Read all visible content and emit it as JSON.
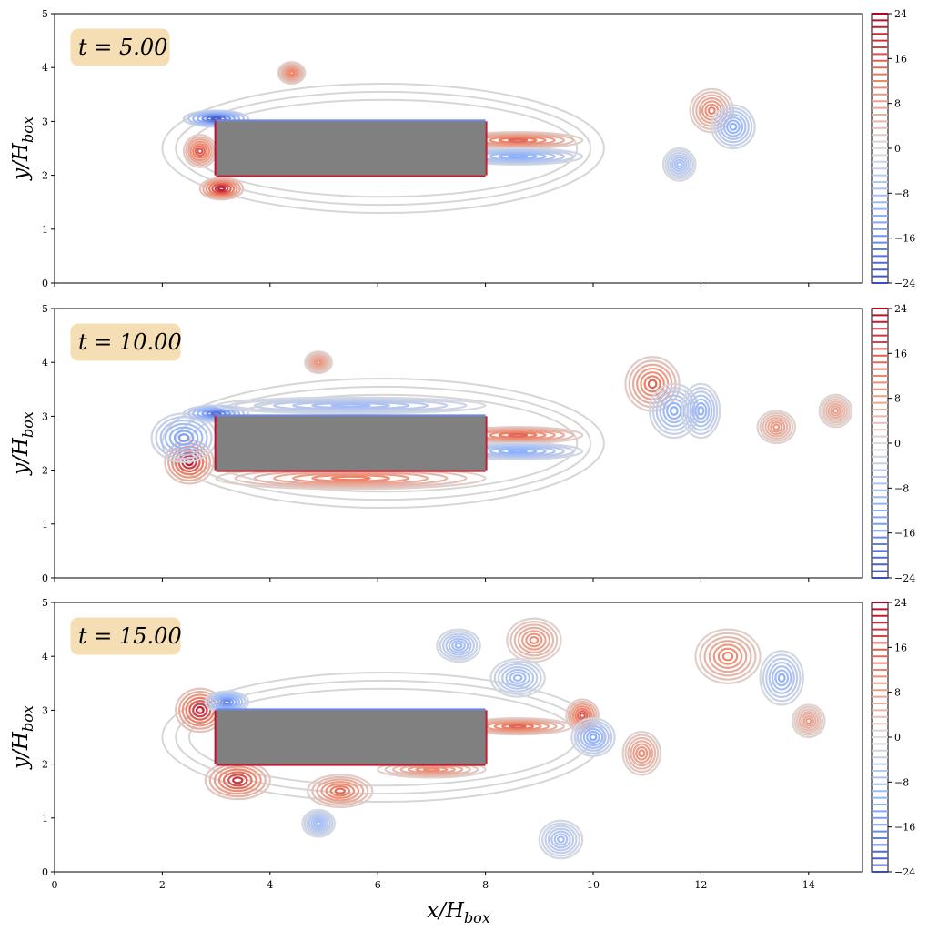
{
  "chart_data": [
    {
      "type": "contour",
      "annotation": "t = 5.00",
      "ylabel": "y/H",
      "ylabel_sub": "box",
      "xlim": [
        0,
        15
      ],
      "ylim": [
        0,
        5
      ],
      "y_ticks": [
        "0",
        "1",
        "2",
        "3",
        "4",
        "5"
      ],
      "x_ticks_labeled": false,
      "obstacle": {
        "x": [
          3,
          8
        ],
        "y": [
          2,
          3
        ],
        "color": "#808080"
      },
      "colorbar": {
        "ticks": [
          "24",
          "16",
          "8",
          "0",
          "−8",
          "−16",
          "−24"
        ],
        "range": [
          -24,
          24
        ],
        "colormap": "coolwarm"
      },
      "vortices": [
        {
          "x": 3.0,
          "y": 3.05,
          "sign": -1,
          "strength": 0.9,
          "rx": 0.6,
          "ry": 0.15
        },
        {
          "x": 2.7,
          "y": 2.45,
          "sign": 1,
          "strength": 0.7,
          "rx": 0.3,
          "ry": 0.3
        },
        {
          "x": 3.1,
          "y": 1.75,
          "sign": 1,
          "strength": 0.9,
          "rx": 0.4,
          "ry": 0.2
        },
        {
          "x": 4.4,
          "y": 3.9,
          "sign": 1,
          "strength": 0.5,
          "rx": 0.25,
          "ry": 0.2
        },
        {
          "x": 8.6,
          "y": 2.65,
          "sign": 1,
          "strength": 0.6,
          "rx": 1.2,
          "ry": 0.15
        },
        {
          "x": 8.6,
          "y": 2.35,
          "sign": -1,
          "strength": 0.5,
          "rx": 1.2,
          "ry": 0.15
        },
        {
          "x": 12.2,
          "y": 3.2,
          "sign": 1,
          "strength": 0.5,
          "rx": 0.4,
          "ry": 0.4
        },
        {
          "x": 12.6,
          "y": 2.9,
          "sign": -1,
          "strength": 0.5,
          "rx": 0.4,
          "ry": 0.4
        },
        {
          "x": 11.6,
          "y": 2.2,
          "sign": -1,
          "strength": 0.35,
          "rx": 0.3,
          "ry": 0.3
        }
      ]
    },
    {
      "type": "contour",
      "annotation": "t = 10.00",
      "ylabel": "y/H",
      "ylabel_sub": "box",
      "xlim": [
        0,
        15
      ],
      "ylim": [
        0,
        5
      ],
      "y_ticks": [
        "0",
        "1",
        "2",
        "3",
        "4",
        "5"
      ],
      "x_ticks_labeled": false,
      "obstacle": {
        "x": [
          3,
          8
        ],
        "y": [
          2,
          3
        ],
        "color": "#808080"
      },
      "colorbar": {
        "ticks": [
          "24",
          "16",
          "8",
          "0",
          "−8",
          "−16",
          "−24"
        ],
        "range": [
          -24,
          24
        ],
        "colormap": "coolwarm"
      },
      "vortices": [
        {
          "x": 2.5,
          "y": 2.15,
          "sign": 1,
          "strength": 0.9,
          "rx": 0.45,
          "ry": 0.4
        },
        {
          "x": 2.4,
          "y": 2.6,
          "sign": -1,
          "strength": 0.6,
          "rx": 0.6,
          "ry": 0.45
        },
        {
          "x": 3.0,
          "y": 3.05,
          "sign": -1,
          "strength": 0.8,
          "rx": 0.6,
          "ry": 0.15
        },
        {
          "x": 5.5,
          "y": 1.85,
          "sign": 1,
          "strength": 0.5,
          "rx": 2.5,
          "ry": 0.2
        },
        {
          "x": 5.5,
          "y": 3.2,
          "sign": -1,
          "strength": 0.35,
          "rx": 2.5,
          "ry": 0.15
        },
        {
          "x": 8.6,
          "y": 2.65,
          "sign": 1,
          "strength": 0.6,
          "rx": 1.2,
          "ry": 0.15
        },
        {
          "x": 8.6,
          "y": 2.35,
          "sign": -1,
          "strength": 0.5,
          "rx": 1.2,
          "ry": 0.15
        },
        {
          "x": 11.1,
          "y": 3.6,
          "sign": 1,
          "strength": 0.6,
          "rx": 0.5,
          "ry": 0.5
        },
        {
          "x": 11.5,
          "y": 3.1,
          "sign": -1,
          "strength": 0.5,
          "rx": 0.45,
          "ry": 0.5
        },
        {
          "x": 12.0,
          "y": 3.1,
          "sign": -1,
          "strength": 0.45,
          "rx": 0.35,
          "ry": 0.5
        },
        {
          "x": 13.4,
          "y": 2.8,
          "sign": 1,
          "strength": 0.4,
          "rx": 0.35,
          "ry": 0.3
        },
        {
          "x": 14.5,
          "y": 3.1,
          "sign": 1,
          "strength": 0.35,
          "rx": 0.3,
          "ry": 0.3
        },
        {
          "x": 4.9,
          "y": 4.0,
          "sign": 1,
          "strength": 0.4,
          "rx": 0.25,
          "ry": 0.2
        }
      ]
    },
    {
      "type": "contour",
      "annotation": "t = 15.00",
      "ylabel": "y/H",
      "ylabel_sub": "box",
      "xlabel": "x/H",
      "xlabel_sub": "box",
      "xlim": [
        0,
        15
      ],
      "ylim": [
        0,
        5
      ],
      "y_ticks": [
        "0",
        "1",
        "2",
        "3",
        "4",
        "5"
      ],
      "x_ticks": [
        "0",
        "2",
        "4",
        "6",
        "8",
        "10",
        "12",
        "14"
      ],
      "x_ticks_labeled": true,
      "obstacle": {
        "x": [
          3,
          8
        ],
        "y": [
          2,
          3
        ],
        "color": "#808080"
      },
      "colorbar": {
        "ticks": [
          "24",
          "16",
          "8",
          "0",
          "−8",
          "−16",
          "−24"
        ],
        "range": [
          -24,
          24
        ],
        "colormap": "coolwarm"
      },
      "vortices": [
        {
          "x": 2.7,
          "y": 3.0,
          "sign": 1,
          "strength": 0.9,
          "rx": 0.45,
          "ry": 0.4
        },
        {
          "x": 3.2,
          "y": 3.15,
          "sign": -1,
          "strength": 0.7,
          "rx": 0.4,
          "ry": 0.2
        },
        {
          "x": 3.4,
          "y": 1.7,
          "sign": 1,
          "strength": 0.8,
          "rx": 0.6,
          "ry": 0.35
        },
        {
          "x": 5.3,
          "y": 1.5,
          "sign": 1,
          "strength": 0.6,
          "rx": 0.6,
          "ry": 0.3
        },
        {
          "x": 4.9,
          "y": 0.9,
          "sign": -1,
          "strength": 0.4,
          "rx": 0.3,
          "ry": 0.25
        },
        {
          "x": 7.0,
          "y": 1.9,
          "sign": 1,
          "strength": 0.45,
          "rx": 1.0,
          "ry": 0.15
        },
        {
          "x": 8.6,
          "y": 2.7,
          "sign": 1,
          "strength": 0.6,
          "rx": 1.0,
          "ry": 0.15
        },
        {
          "x": 9.8,
          "y": 2.9,
          "sign": 1,
          "strength": 0.7,
          "rx": 0.3,
          "ry": 0.3
        },
        {
          "x": 10.0,
          "y": 2.5,
          "sign": -1,
          "strength": 0.55,
          "rx": 0.4,
          "ry": 0.35
        },
        {
          "x": 10.9,
          "y": 2.2,
          "sign": 1,
          "strength": 0.45,
          "rx": 0.35,
          "ry": 0.4
        },
        {
          "x": 8.9,
          "y": 4.3,
          "sign": 1,
          "strength": 0.45,
          "rx": 0.5,
          "ry": 0.4
        },
        {
          "x": 8.6,
          "y": 3.6,
          "sign": -1,
          "strength": 0.4,
          "rx": 0.5,
          "ry": 0.35
        },
        {
          "x": 7.5,
          "y": 4.2,
          "sign": -1,
          "strength": 0.4,
          "rx": 0.4,
          "ry": 0.3
        },
        {
          "x": 12.5,
          "y": 4.0,
          "sign": 1,
          "strength": 0.5,
          "rx": 0.6,
          "ry": 0.5
        },
        {
          "x": 13.5,
          "y": 3.6,
          "sign": -1,
          "strength": 0.45,
          "rx": 0.4,
          "ry": 0.5
        },
        {
          "x": 14.0,
          "y": 2.8,
          "sign": 1,
          "strength": 0.35,
          "rx": 0.3,
          "ry": 0.3
        },
        {
          "x": 9.4,
          "y": 0.6,
          "sign": -1,
          "strength": 0.35,
          "rx": 0.4,
          "ry": 0.35
        }
      ]
    }
  ]
}
